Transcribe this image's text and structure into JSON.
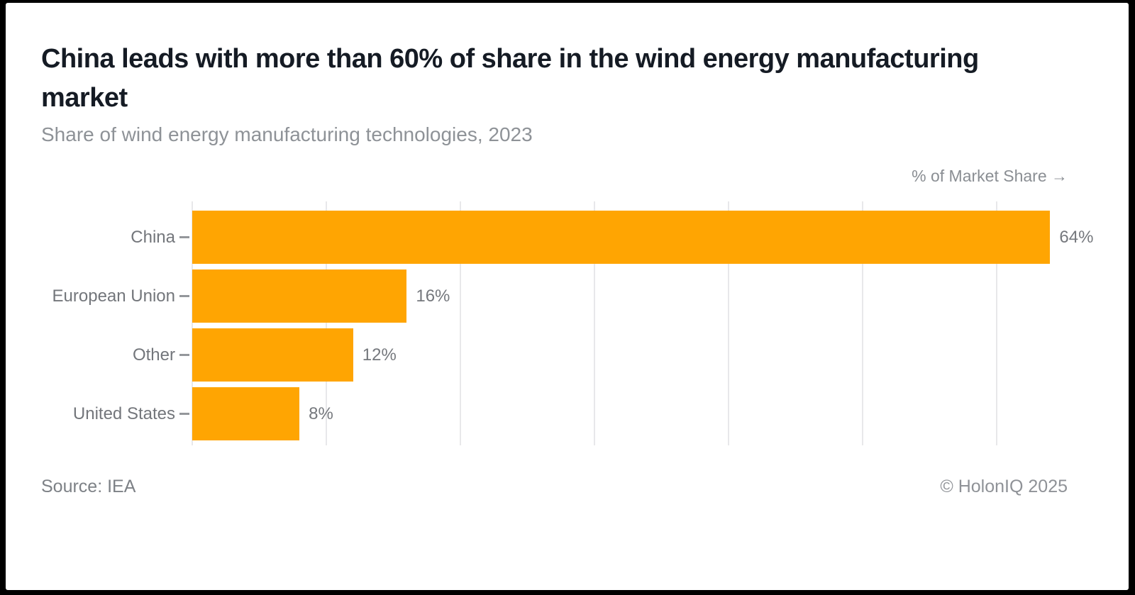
{
  "header": {
    "title": "China leads with more than 60% of share in the wind energy manufacturing market",
    "subtitle": "Share of wind energy manufacturing technologies, 2023"
  },
  "chart_data": {
    "type": "bar",
    "orientation": "horizontal",
    "title": "China leads with more than 60% of share in the wind energy manufacturing market",
    "subtitle": "Share of wind energy manufacturing technologies, 2023",
    "xlabel": "% of Market Share →",
    "categories": [
      "China",
      "European Union",
      "Other",
      "United States"
    ],
    "values": [
      64,
      16,
      12,
      8
    ],
    "value_labels": [
      "64%",
      "16%",
      "12%",
      "8%"
    ],
    "xlim": [
      0,
      65.3
    ],
    "gridlines": [
      0,
      10,
      20,
      30,
      40,
      50,
      60
    ],
    "grid": true,
    "legend": false,
    "bar_color": "#FFA502"
  },
  "footer": {
    "source": "Source: IEA",
    "copyright": "© HolonIQ 2025"
  },
  "colors": {
    "accent": "#FFA502",
    "title_text": "#151B24",
    "muted_text": "#8E9297",
    "label_text": "#73767B",
    "gridline": "#E8E8EA",
    "card_background": "#FFFFFF",
    "frame": "#000000"
  }
}
